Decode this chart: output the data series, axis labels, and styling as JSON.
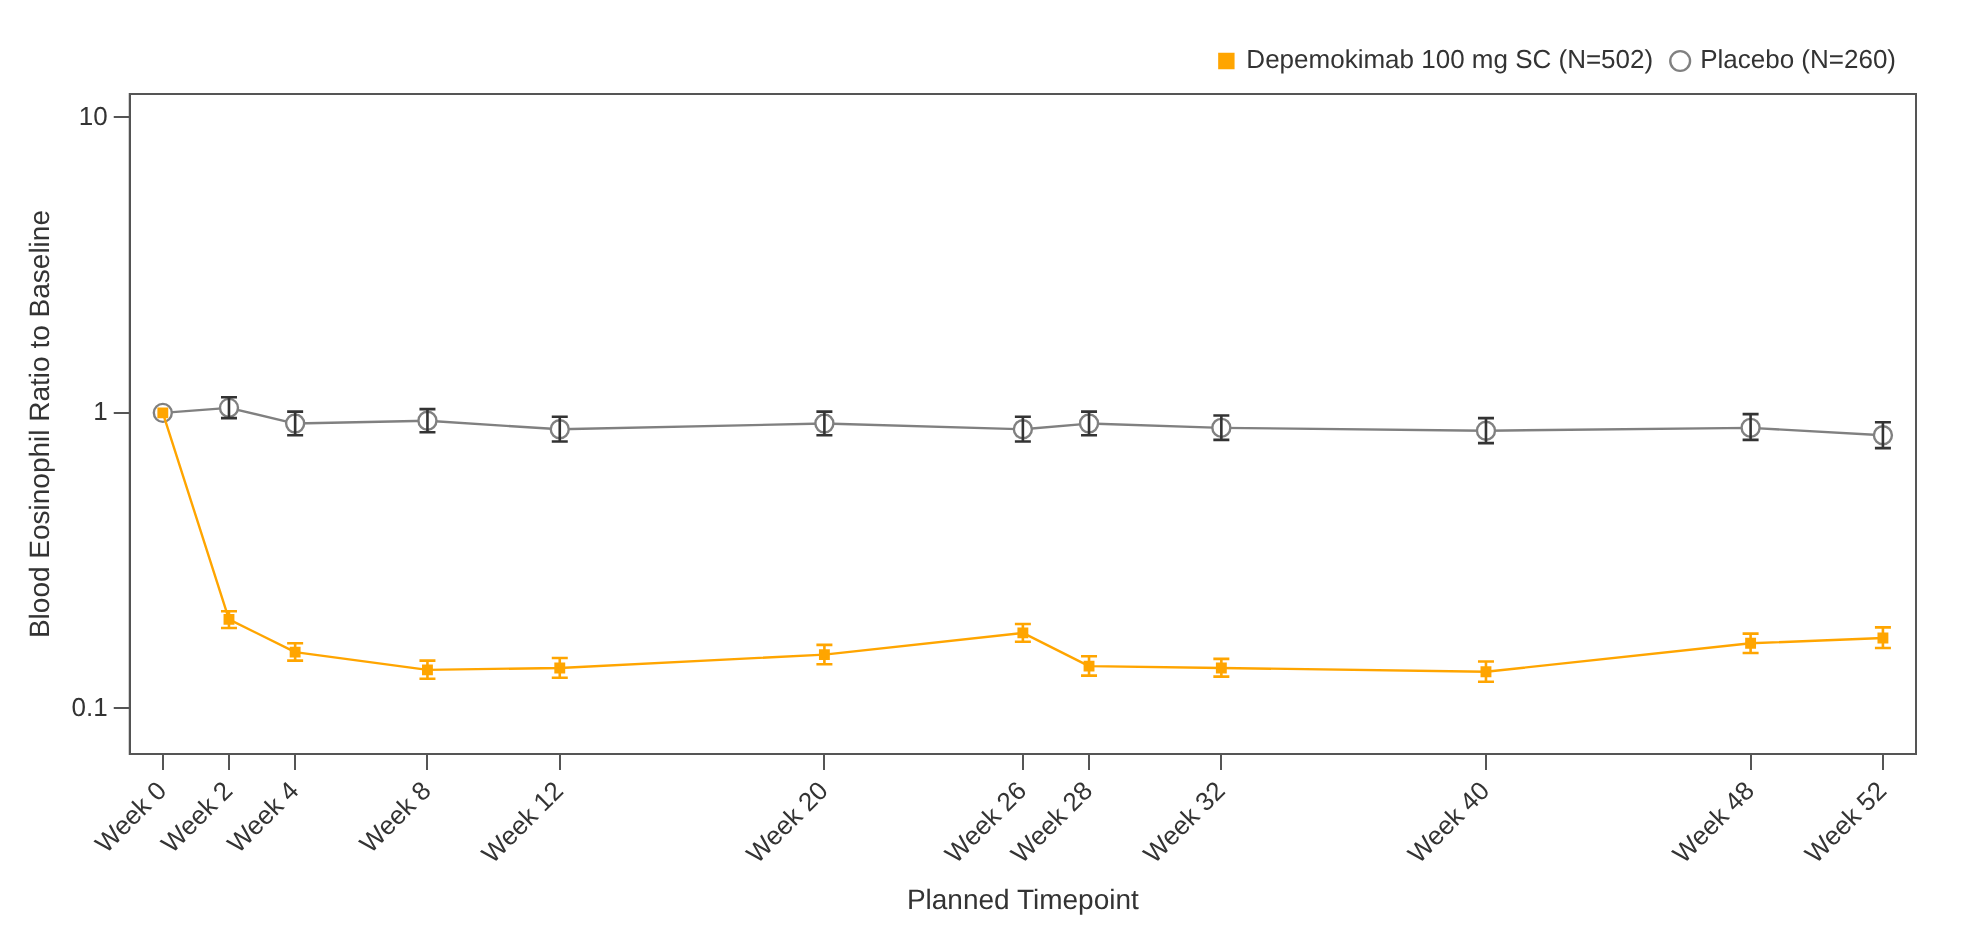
{
  "chart_data": {
    "type": "line",
    "xlabel": "Planned Timepoint",
    "ylabel": "Blood Eosinophil Ratio to Baseline",
    "log": "y",
    "grid": false,
    "legend": "top right",
    "line_style": "solid",
    "categories": [
      "Week 0",
      "Week 2",
      "Week 4",
      null,
      "Week 8",
      null,
      "Week 12",
      null,
      null,
      null,
      "Week 20",
      null,
      null,
      "Week 26",
      "Week 28",
      null,
      "Week 32",
      null,
      null,
      null,
      "Week 40",
      null,
      null,
      null,
      "Week 48",
      null,
      "Week 52"
    ],
    "ylim": [
      0.07,
      12
    ],
    "yticks": [
      0.1,
      1,
      10
    ],
    "series": [
      {
        "name": "Placebo (N=260)",
        "color": "#808080",
        "marker": "circle",
        "values": [
          1.0,
          1.04,
          0.92,
          null,
          0.94,
          null,
          0.88,
          null,
          null,
          null,
          0.92,
          null,
          null,
          0.88,
          0.92,
          null,
          0.89,
          null,
          null,
          null,
          0.87,
          null,
          null,
          null,
          0.89,
          null,
          0.84
        ],
        "errors": [
          null,
          [
            0.96,
            1.13
          ],
          [
            0.84,
            1.01
          ],
          null,
          [
            0.86,
            1.03
          ],
          null,
          [
            0.8,
            0.97
          ],
          null,
          null,
          null,
          [
            0.84,
            1.01
          ],
          null,
          null,
          [
            0.8,
            0.97
          ],
          [
            0.84,
            1.01
          ],
          null,
          [
            0.81,
            0.98
          ],
          null,
          null,
          null,
          [
            0.79,
            0.96
          ],
          null,
          null,
          null,
          [
            0.81,
            0.99
          ],
          null,
          [
            0.76,
            0.93
          ]
        ]
      },
      {
        "name": "Depemokimab 100 mg SC (N=502)",
        "color": "#ffa500",
        "marker": "square",
        "values": [
          1.0,
          0.2,
          0.155,
          null,
          0.135,
          null,
          0.137,
          null,
          null,
          null,
          0.152,
          null,
          null,
          0.18,
          0.139,
          null,
          0.137,
          null,
          null,
          null,
          0.133,
          null,
          null,
          null,
          0.166,
          null,
          0.173
        ],
        "errors": [
          null,
          [
            0.187,
            0.213
          ],
          [
            0.145,
            0.166
          ],
          null,
          [
            0.126,
            0.145
          ],
          null,
          [
            0.127,
            0.148
          ],
          null,
          null,
          null,
          [
            0.141,
            0.164
          ],
          null,
          null,
          [
            0.168,
            0.193
          ],
          [
            0.129,
            0.15
          ],
          null,
          [
            0.128,
            0.147
          ],
          null,
          null,
          null,
          [
            0.123,
            0.144
          ],
          null,
          null,
          null,
          [
            0.154,
            0.179
          ],
          null,
          [
            0.16,
            0.188
          ]
        ]
      }
    ]
  }
}
